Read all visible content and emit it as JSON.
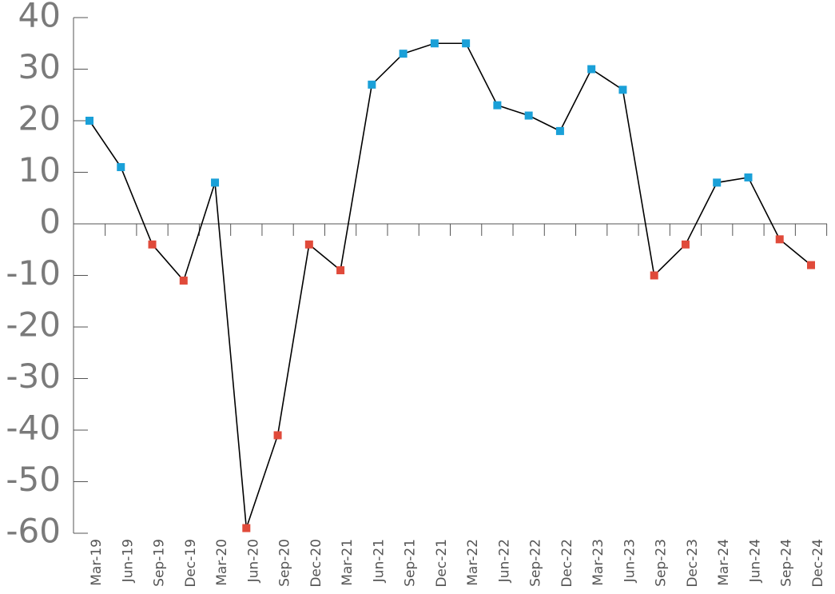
{
  "chart_data": {
    "type": "line",
    "categories": [
      "Mar-19",
      "Jun-19",
      "Sep-19",
      "Dec-19",
      "Mar-20",
      "Jun-20",
      "Sep-20",
      "Dec-20",
      "Mar-21",
      "Jun-21",
      "Sep-21",
      "Dec-21",
      "Mar-22",
      "Jun-22",
      "Sep-22",
      "Dec-22",
      "Mar-23",
      "Jun-23",
      "Sep-23",
      "Dec-23",
      "Mar-24",
      "Jun-24",
      "Sep-24",
      "Dec-24"
    ],
    "values": [
      20,
      11,
      -4,
      -11,
      8,
      -59,
      -41,
      -4,
      -9,
      27,
      33,
      35,
      35,
      23,
      21,
      18,
      30,
      26,
      -10,
      -4,
      8,
      9,
      -3,
      -8
    ],
    "color": "#000000",
    "positive_color": "#1aa0d8",
    "negative_color": "#e04a3a",
    "ylim": [
      -60,
      40
    ],
    "yticks": [
      -60,
      -50,
      -40,
      -30,
      -20,
      -10,
      0,
      10,
      20,
      30,
      40
    ]
  }
}
